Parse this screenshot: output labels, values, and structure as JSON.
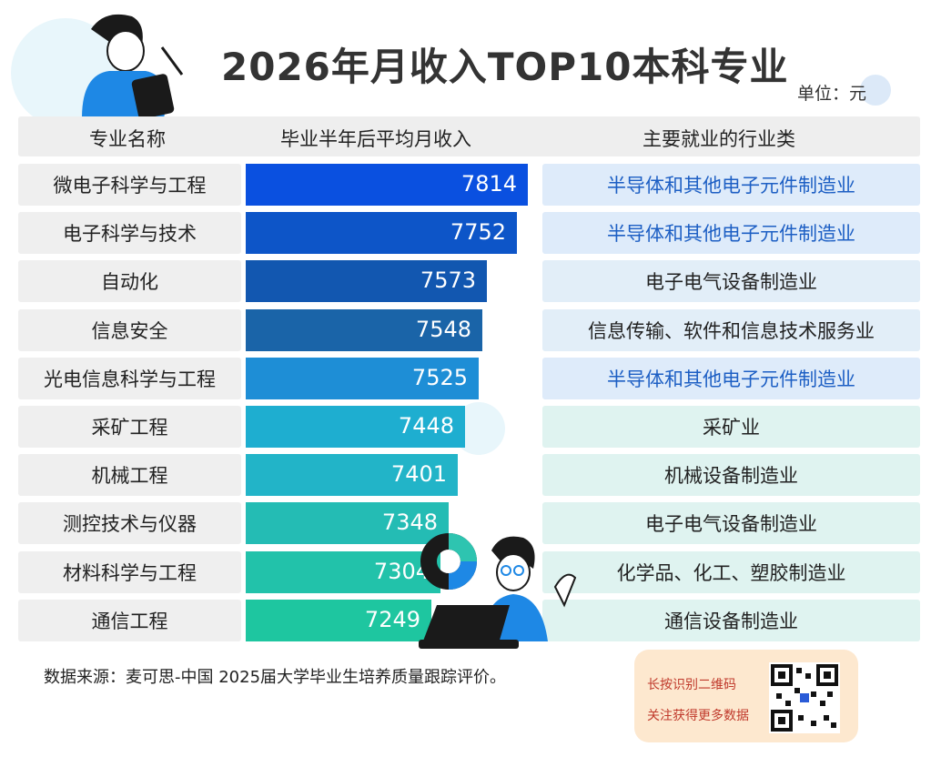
{
  "title": "2026年月收入TOP10本科专业",
  "unit": "单位：元",
  "headers": {
    "major": "专业名称",
    "income": "毕业半年后平均月收入",
    "industry": "主要就业的行业类"
  },
  "chart_data": {
    "type": "bar",
    "orientation": "horizontal",
    "title": "2026年月收入TOP10本科专业",
    "categories": [
      "微电子科学与工程",
      "电子科学与技术",
      "自动化",
      "信息安全",
      "光电信息科学与工程",
      "采矿工程",
      "机械工程",
      "测控技术与仪器",
      "材料科学与工程",
      "通信工程"
    ],
    "values": [
      7814,
      7752,
      7573,
      7548,
      7525,
      7448,
      7401,
      7348,
      7304,
      7249
    ],
    "industries": [
      "半导体和其他电子元件制造业",
      "半导体和其他电子元件制造业",
      "电子电气设备制造业",
      "信息传输、软件和信息技术服务业",
      "半导体和其他电子元件制造业",
      "采矿业",
      "机械设备制造业",
      "电子电气设备制造业",
      "化学品、化工、塑胶制造业",
      "通信设备制造业"
    ],
    "highlighted_industry": "半导体和其他电子元件制造业",
    "bar_colors": [
      "#0a50e0",
      "#0d55c8",
      "#1257b0",
      "#1a64a8",
      "#1e8ed6",
      "#1eaed0",
      "#22b4c8",
      "#24bcb4",
      "#22c2aa",
      "#1ec6a0"
    ]
  },
  "source": "数据来源：麦可思-中国 2025届大学毕业生培养质量跟踪评价。",
  "qr": {
    "line1": "长按识别二维码",
    "line2": "关注获得更多数据"
  }
}
